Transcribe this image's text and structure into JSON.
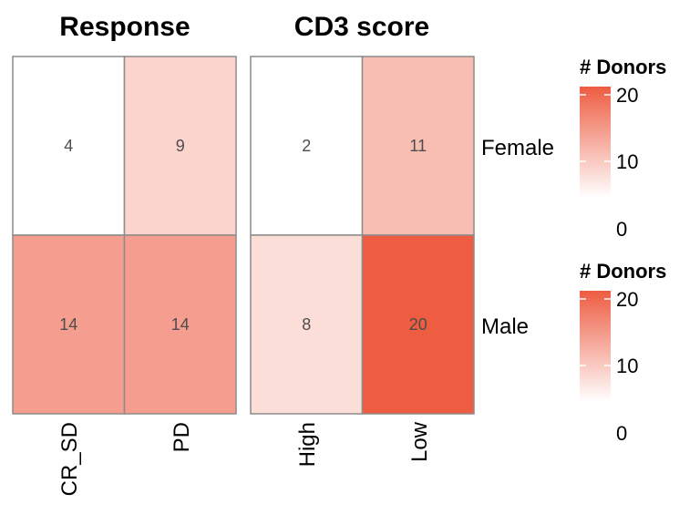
{
  "chart_data": {
    "type": "heatmap",
    "colors": {
      "low": "#ffffff",
      "high": "#ee5c42",
      "border": "#8c8c8c"
    },
    "scale_range": [
      5,
      20
    ],
    "rows": [
      "Female",
      "Male"
    ],
    "panels": [
      {
        "title": "Response",
        "columns": [
          "CR_SD",
          "PD"
        ],
        "values": [
          [
            4,
            9
          ],
          [
            14,
            14
          ]
        ],
        "labels": [
          [
            "4",
            "9"
          ],
          [
            "14",
            "14"
          ]
        ]
      },
      {
        "title": "CD3 score",
        "columns": [
          "High",
          "Low"
        ],
        "values": [
          [
            2,
            11
          ],
          [
            8,
            20
          ]
        ],
        "labels": [
          [
            "2",
            "11"
          ],
          [
            "8",
            "20"
          ]
        ]
      }
    ],
    "legends": [
      {
        "title": "# Donors",
        "breaks": [
          0,
          10,
          20
        ],
        "break_labels": [
          "0",
          "10",
          "20"
        ]
      },
      {
        "title": "# Donors",
        "breaks": [
          0,
          10,
          20
        ],
        "break_labels": [
          "0",
          "10",
          "20"
        ]
      }
    ]
  }
}
